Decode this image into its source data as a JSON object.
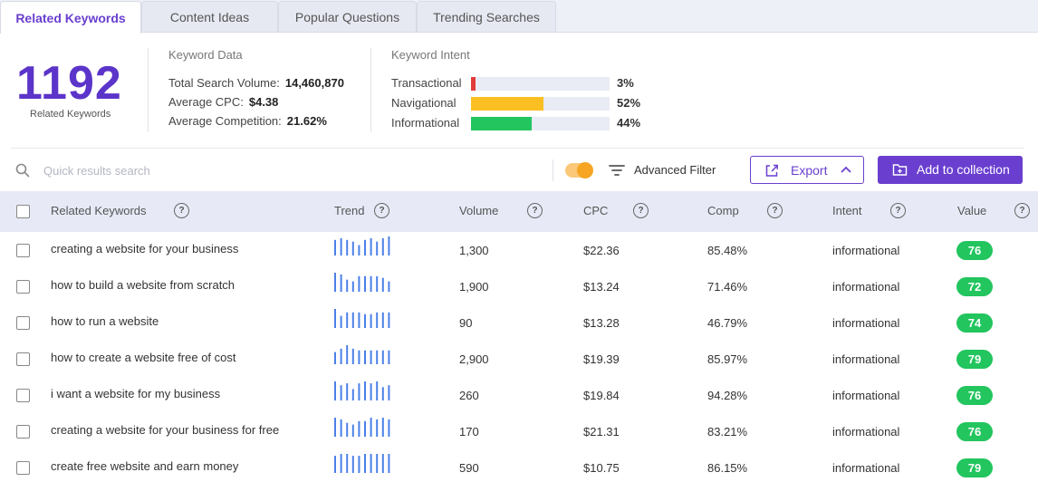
{
  "tabs": [
    {
      "label": "Related Keywords",
      "active": true
    },
    {
      "label": "Content Ideas",
      "active": false
    },
    {
      "label": "Popular Questions",
      "active": false
    },
    {
      "label": "Trending Searches",
      "active": false
    }
  ],
  "summary": {
    "count": "1192",
    "count_label": "Related Keywords",
    "keyword_data": {
      "title": "Keyword Data",
      "total_search_volume_label": "Total Search Volume:",
      "total_search_volume": "14,460,870",
      "average_cpc_label": "Average CPC:",
      "average_cpc": "$4.38",
      "average_competition_label": "Average Competition:",
      "average_competition": "21.62%"
    },
    "keyword_intent": {
      "title": "Keyword Intent",
      "items": [
        {
          "label": "Transactional",
          "percent": 3,
          "percent_text": "3%",
          "color": "#e23b3b"
        },
        {
          "label": "Navigational",
          "percent": 52,
          "percent_text": "52%",
          "color": "#fbbf24"
        },
        {
          "label": "Informational",
          "percent": 44,
          "percent_text": "44%",
          "color": "#22c55e"
        }
      ]
    }
  },
  "toolbar": {
    "search_placeholder": "Quick results search",
    "toggle_on": true,
    "filter_label": "Advanced Filter",
    "export_label": "Export",
    "add_label": "Add to collection",
    "accent_color": "#6a3fcf"
  },
  "table": {
    "headers": {
      "keyword": "Related Keywords",
      "trend": "Trend",
      "volume": "Volume",
      "cpc": "CPC",
      "comp": "Comp",
      "intent": "Intent",
      "value": "Value"
    },
    "help_glyph": "?",
    "rows": [
      {
        "keyword": "creating a website for your business",
        "trend": [
          9,
          10,
          9,
          8,
          6,
          9,
          10,
          8,
          10,
          11
        ],
        "volume": "1,300",
        "cpc": "$22.36",
        "comp": "85.48%",
        "intent": "informational",
        "value": "76"
      },
      {
        "keyword": "how to build a website from scratch",
        "trend": [
          11,
          10,
          7,
          6,
          9,
          9,
          9,
          9,
          8,
          6
        ],
        "volume": "1,900",
        "cpc": "$13.24",
        "comp": "71.46%",
        "intent": "informational",
        "value": "72"
      },
      {
        "keyword": "how to run a website",
        "trend": [
          11,
          7,
          9,
          9,
          9,
          8,
          8,
          9,
          9,
          9
        ],
        "volume": "90",
        "cpc": "$13.28",
        "comp": "46.79%",
        "intent": "informational",
        "value": "74"
      },
      {
        "keyword": "how to create a website free of cost",
        "trend": [
          7,
          9,
          11,
          9,
          8,
          8,
          8,
          8,
          8,
          8
        ],
        "volume": "2,900",
        "cpc": "$19.39",
        "comp": "85.97%",
        "intent": "informational",
        "value": "79"
      },
      {
        "keyword": "i want a website for my business",
        "trend": [
          10,
          8,
          9,
          6,
          9,
          10,
          9,
          10,
          7,
          8
        ],
        "volume": "260",
        "cpc": "$19.84",
        "comp": "94.28%",
        "intent": "informational",
        "value": "76"
      },
      {
        "keyword": "creating a website for your business for free",
        "trend": [
          11,
          10,
          8,
          7,
          9,
          9,
          11,
          10,
          11,
          10
        ],
        "volume": "170",
        "cpc": "$21.31",
        "comp": "83.21%",
        "intent": "informational",
        "value": "76"
      },
      {
        "keyword": "create free website and earn money",
        "trend": [
          9,
          10,
          10,
          9,
          9,
          10,
          10,
          10,
          10,
          10
        ],
        "volume": "590",
        "cpc": "$10.75",
        "comp": "86.15%",
        "intent": "informational",
        "value": "79"
      }
    ]
  }
}
